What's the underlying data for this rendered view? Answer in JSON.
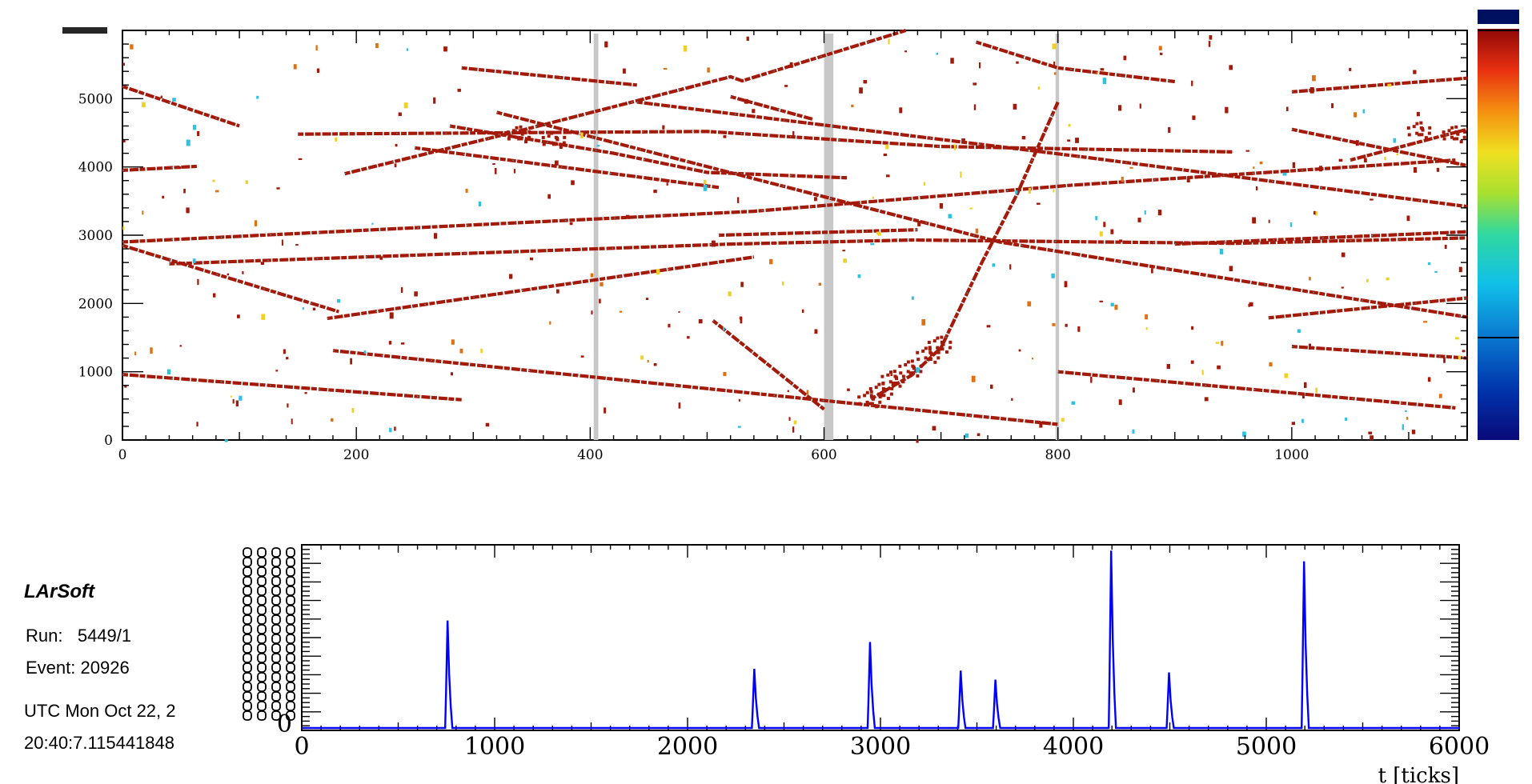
{
  "sidebar": {
    "title": "LArSoft",
    "run_label": "Run:",
    "run_value": "5449/1",
    "event_label": "Event:",
    "event_value": "20926",
    "utc_date": "UTC Mon Oct 22, 2",
    "utc_time": "20:40:7.115441848"
  },
  "colors": {
    "track": "#a31a0a",
    "dead_band": "#c8c8c8",
    "waveform": "#0000ff",
    "axis": "#000000"
  },
  "chart_data": [
    {
      "type": "heatmap",
      "title": "",
      "xlabel": "",
      "ylabel": "",
      "xlim": [
        0,
        1150
      ],
      "ylim": [
        0,
        6000
      ],
      "x_ticks": [
        0,
        200,
        400,
        600,
        800,
        1000
      ],
      "y_ticks": [
        0,
        1000,
        2000,
        3000,
        4000,
        5000
      ],
      "dead_regions_x": [
        [
          403,
          407
        ],
        [
          600,
          608
        ],
        [
          798,
          801
        ]
      ],
      "tracks": [
        [
          [
            0,
            5180
          ],
          [
            100,
            4600
          ]
        ],
        [
          [
            0,
            3950
          ],
          [
            65,
            4010
          ]
        ],
        [
          [
            0,
            2850
          ],
          [
            185,
            1880
          ]
        ],
        [
          [
            0,
            2900
          ],
          [
            540,
            3350
          ],
          [
            810,
            3730
          ],
          [
            1140,
            4100
          ]
        ],
        [
          [
            0,
            960
          ],
          [
            290,
            590
          ]
        ],
        [
          [
            40,
            2580
          ],
          [
            520,
            2870
          ],
          [
            675,
            2930
          ],
          [
            950,
            2880
          ],
          [
            1150,
            2960
          ]
        ],
        [
          [
            150,
            4480
          ],
          [
            500,
            4520
          ],
          [
            700,
            4300
          ],
          [
            950,
            4220
          ]
        ],
        [
          [
            175,
            1780
          ],
          [
            540,
            2680
          ]
        ],
        [
          [
            180,
            1310
          ],
          [
            800,
            230
          ]
        ],
        [
          [
            190,
            3900
          ],
          [
            340,
            4530
          ],
          [
            520,
            5320
          ],
          [
            530,
            5260
          ],
          [
            670,
            6000
          ]
        ],
        [
          [
            250,
            4280
          ],
          [
            510,
            3700
          ]
        ],
        [
          [
            280,
            4600
          ],
          [
            420,
            4200
          ],
          [
            500,
            3920
          ],
          [
            620,
            3840
          ]
        ],
        [
          [
            290,
            5450
          ],
          [
            440,
            5200
          ]
        ],
        [
          [
            320,
            4800
          ],
          [
            750,
            2900
          ],
          [
            1150,
            1800
          ]
        ],
        [
          [
            440,
            4950
          ],
          [
            820,
            4150
          ],
          [
            1150,
            3420
          ]
        ],
        [
          [
            520,
            5030
          ],
          [
            590,
            4700
          ]
        ],
        [
          [
            510,
            3000
          ],
          [
            680,
            3080
          ]
        ],
        [
          [
            505,
            1750
          ],
          [
            600,
            450
          ]
        ],
        [
          [
            640,
            600
          ],
          [
            675,
            950
          ],
          [
            700,
            1350
          ],
          [
            735,
            2600
          ],
          [
            765,
            3600
          ],
          [
            800,
            4950
          ]
        ],
        [
          [
            730,
            5830
          ],
          [
            800,
            5450
          ],
          [
            900,
            5250
          ]
        ],
        [
          [
            800,
            1000
          ],
          [
            1140,
            470
          ]
        ],
        [
          [
            900,
            2870
          ],
          [
            1150,
            3050
          ]
        ],
        [
          [
            980,
            1790
          ],
          [
            1150,
            2080
          ]
        ],
        [
          [
            1000,
            1370
          ],
          [
            1150,
            1200
          ]
        ],
        [
          [
            1000,
            4550
          ],
          [
            1150,
            4020
          ]
        ],
        [
          [
            1050,
            4100
          ],
          [
            1150,
            4550
          ]
        ],
        [
          [
            1000,
            5100
          ],
          [
            1150,
            5300
          ]
        ]
      ]
    },
    {
      "type": "line",
      "title": "",
      "xlabel": "t [ticks]",
      "ylabel": "",
      "xlim": [
        0,
        6000
      ],
      "ylim": [
        0,
        1
      ],
      "x_ticks": [
        0,
        1000,
        2000,
        3000,
        4000,
        5000,
        6000
      ],
      "y_tick_label": "0",
      "peaks": [
        {
          "x": 760,
          "height": 0.6
        },
        {
          "x": 2350,
          "height": 0.33
        },
        {
          "x": 2950,
          "height": 0.48
        },
        {
          "x": 3420,
          "height": 0.32
        },
        {
          "x": 3600,
          "height": 0.27
        },
        {
          "x": 4200,
          "height": 0.99
        },
        {
          "x": 4500,
          "height": 0.31
        },
        {
          "x": 5200,
          "height": 0.93
        }
      ]
    }
  ]
}
